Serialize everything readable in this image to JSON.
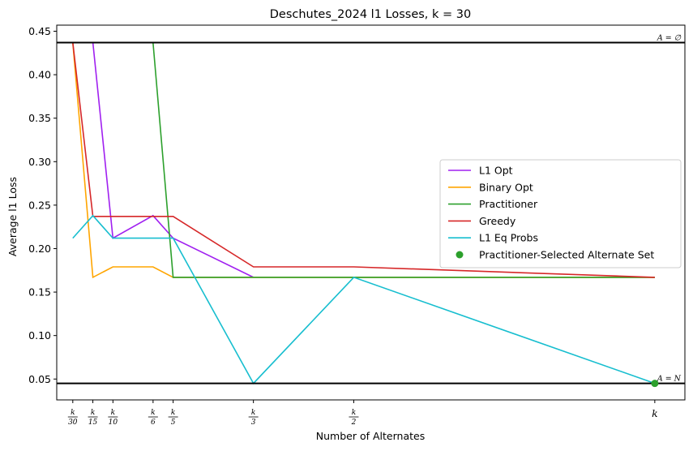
{
  "chart_data": {
    "type": "line",
    "title": "Deschutes_2024 l1 Losses, k = 30",
    "xlabel": "Number of Alternates",
    "ylabel": "Average l1 Loss",
    "x_ticks": [
      {
        "x": 1,
        "label_top": "k",
        "label_bottom": "30"
      },
      {
        "x": 2,
        "label_top": "k",
        "label_bottom": "15"
      },
      {
        "x": 3,
        "label_top": "k",
        "label_bottom": "10"
      },
      {
        "x": 5,
        "label_top": "k",
        "label_bottom": "6"
      },
      {
        "x": 6,
        "label_top": "k",
        "label_bottom": "5"
      },
      {
        "x": 10,
        "label_top": "k",
        "label_bottom": "3"
      },
      {
        "x": 15,
        "label_top": "k",
        "label_bottom": "2"
      },
      {
        "x": 30,
        "label_top": "k",
        "label_bottom": ""
      }
    ],
    "y_ticks": [
      "0.05",
      "0.10",
      "0.15",
      "0.20",
      "0.25",
      "0.30",
      "0.35",
      "0.40",
      "0.45"
    ],
    "xlim": [
      0.2,
      31.5
    ],
    "ylim": [
      0.026,
      0.457
    ],
    "hlines": [
      {
        "y": 0.437,
        "label": "A = ∅"
      },
      {
        "y": 0.045,
        "label": "A = N"
      }
    ],
    "series": [
      {
        "name": "L1 Opt",
        "color": "#a020f0",
        "x": [
          2,
          3,
          5,
          6,
          10
        ],
        "y": [
          0.437,
          0.212,
          0.238,
          0.212,
          0.167
        ]
      },
      {
        "name": "Binary Opt",
        "color": "#ffa500",
        "x": [
          1,
          2,
          3,
          5,
          6,
          10,
          15,
          30
        ],
        "y": [
          0.437,
          0.167,
          0.179,
          0.179,
          0.167,
          0.167,
          0.167,
          0.167
        ]
      },
      {
        "name": "Practitioner",
        "color": "#2ca02c",
        "x": [
          5,
          6,
          10,
          15,
          30
        ],
        "y": [
          0.437,
          0.167,
          0.167,
          0.167,
          0.167
        ]
      },
      {
        "name": "Greedy",
        "color": "#d62728",
        "x": [
          1,
          2,
          3,
          5,
          6,
          10,
          15,
          30
        ],
        "y": [
          0.437,
          0.237,
          0.237,
          0.237,
          0.237,
          0.179,
          0.179,
          0.167
        ]
      },
      {
        "name": "L1 Eq Probs",
        "color": "#17becf",
        "x": [
          1,
          2,
          3,
          5,
          6,
          10,
          15,
          30
        ],
        "y": [
          0.212,
          0.238,
          0.212,
          0.212,
          0.212,
          0.045,
          0.167,
          0.045
        ]
      }
    ],
    "points": [
      {
        "name": "Practitioner-Selected Alternate Set",
        "color": "#2ca02c",
        "x": 30,
        "y": 0.045
      }
    ],
    "legend": "center-right"
  }
}
